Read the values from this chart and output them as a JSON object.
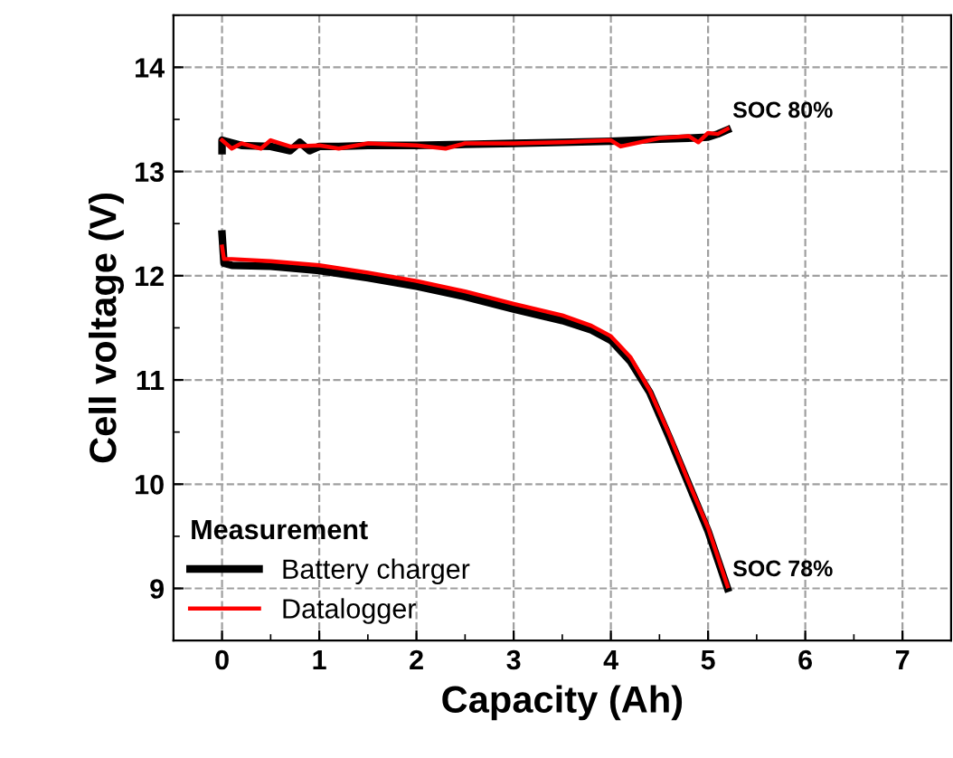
{
  "chart_data": {
    "type": "line",
    "xlabel": "Capacity (Ah)",
    "ylabel": "Cell voltage (V)",
    "legend_title": "Measurement",
    "legend": "bottom left",
    "grid": true,
    "xlim": [
      -0.5,
      7.5
    ],
    "xticks": [
      0,
      1,
      2,
      3,
      4,
      5,
      6,
      7
    ],
    "ylim": [
      8.5,
      14.5
    ],
    "yticks": [
      9,
      10,
      11,
      12,
      13,
      14
    ],
    "series": [
      {
        "name": "Battery charger",
        "color": "#000000",
        "x": [
          0,
          0,
          0.2,
          0.5,
          0.7,
          0.8,
          0.9,
          1.0,
          1.2,
          1.5,
          2.0,
          2.5,
          3.0,
          3.5,
          4.0,
          4.5,
          4.8,
          5.0,
          5.1,
          5.2,
          null,
          0,
          0.02,
          0.1,
          0.5,
          1.0,
          1.5,
          2.0,
          2.5,
          3.0,
          3.5,
          3.8,
          4.0,
          4.2,
          4.4,
          4.6,
          4.8,
          5.0,
          5.2
        ],
        "values": [
          13.2,
          13.3,
          13.25,
          13.24,
          13.2,
          13.28,
          13.2,
          13.24,
          13.24,
          13.25,
          13.25,
          13.26,
          13.27,
          13.28,
          13.29,
          13.31,
          13.32,
          13.33,
          13.36,
          13.4,
          null,
          12.4,
          12.12,
          12.1,
          12.09,
          12.05,
          11.98,
          11.9,
          11.8,
          11.68,
          11.57,
          11.48,
          11.38,
          11.18,
          10.88,
          10.45,
          10.0,
          9.55,
          9.0
        ]
      },
      {
        "name": "Datalogger",
        "color": "#ff0000",
        "x": [
          0,
          0.1,
          0.2,
          0.4,
          0.5,
          0.7,
          1.0,
          1.2,
          1.5,
          2.0,
          2.3,
          2.5,
          3.0,
          3.5,
          4.0,
          4.1,
          4.5,
          4.8,
          4.9,
          5.0,
          5.1,
          5.2,
          null,
          0,
          0.02,
          0.1,
          0.5,
          1.0,
          1.5,
          2.0,
          2.5,
          3.0,
          3.5,
          3.8,
          4.0,
          4.2,
          4.4,
          4.6,
          4.8,
          5.0,
          5.2
        ],
        "values": [
          13.3,
          13.22,
          13.27,
          13.22,
          13.3,
          13.24,
          13.25,
          13.22,
          13.27,
          13.25,
          13.22,
          13.27,
          13.27,
          13.28,
          13.3,
          13.24,
          13.32,
          13.34,
          13.28,
          13.37,
          13.36,
          13.41,
          null,
          12.28,
          12.16,
          12.16,
          12.14,
          12.1,
          12.03,
          11.95,
          11.85,
          11.73,
          11.62,
          11.52,
          11.42,
          11.22,
          10.9,
          10.48,
          10.02,
          9.58,
          9.02
        ]
      }
    ],
    "annotations": [
      {
        "text": "SOC 80%",
        "x": 5.2,
        "y": 13.4
      },
      {
        "text": "SOC 78%",
        "x": 5.2,
        "y": 9.0
      }
    ]
  }
}
